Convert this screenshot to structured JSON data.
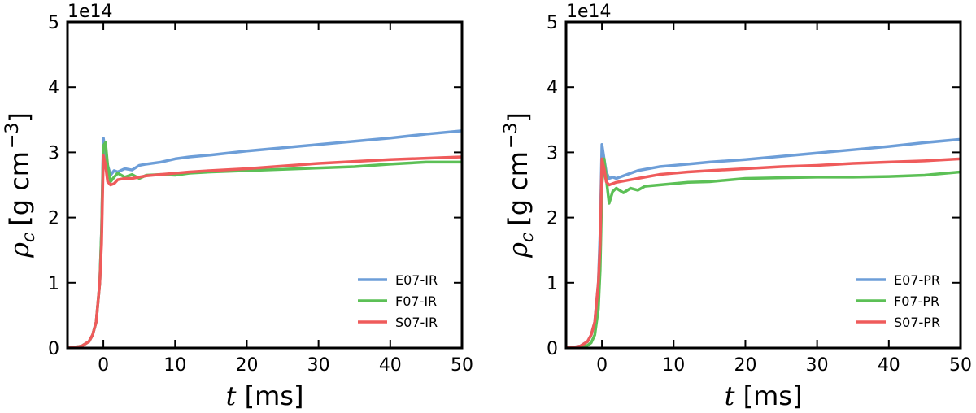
{
  "chart_data": [
    {
      "type": "line",
      "offset_label": "1e14",
      "xlabel": {
        "symbol": "t",
        "unit": "[ms]"
      },
      "ylabel": {
        "symbol": "ρ",
        "sub": "c",
        "unit": "[g cm",
        "sup": "−3",
        "close": "]"
      },
      "xlim": [
        -5,
        50
      ],
      "xticks": [
        0,
        10,
        20,
        30,
        40,
        50
      ],
      "ylim": [
        0,
        5
      ],
      "yticks": [
        0,
        1,
        2,
        3,
        4,
        5
      ],
      "legend": "lower right",
      "x": [
        -5,
        -4,
        -3,
        -2,
        -1.5,
        -1,
        -0.5,
        -0.25,
        0,
        0.3,
        0.6,
        1,
        1.5,
        2,
        3,
        4,
        5,
        6,
        8,
        10,
        12,
        15,
        20,
        25,
        30,
        35,
        40,
        45,
        50
      ],
      "series": [
        {
          "name": "E07-IR",
          "color": "#6d9ed8",
          "values": [
            0,
            0.01,
            0.03,
            0.1,
            0.2,
            0.4,
            1.0,
            1.8,
            3.22,
            3.0,
            2.8,
            2.65,
            2.72,
            2.7,
            2.75,
            2.73,
            2.8,
            2.82,
            2.85,
            2.9,
            2.93,
            2.96,
            3.02,
            3.07,
            3.12,
            3.17,
            3.22,
            3.28,
            3.33
          ]
        },
        {
          "name": "F07-IR",
          "color": "#5cc056",
          "values": [
            0,
            0.01,
            0.03,
            0.1,
            0.2,
            0.4,
            1.0,
            1.8,
            3.1,
            3.15,
            2.8,
            2.55,
            2.62,
            2.68,
            2.62,
            2.66,
            2.6,
            2.65,
            2.66,
            2.65,
            2.68,
            2.7,
            2.72,
            2.74,
            2.76,
            2.78,
            2.82,
            2.85,
            2.85
          ]
        },
        {
          "name": "S07-IR",
          "color": "#ef5b5b",
          "values": [
            0,
            0.01,
            0.03,
            0.1,
            0.2,
            0.4,
            1.0,
            1.6,
            2.95,
            2.8,
            2.55,
            2.5,
            2.52,
            2.58,
            2.6,
            2.6,
            2.62,
            2.64,
            2.66,
            2.68,
            2.7,
            2.72,
            2.75,
            2.79,
            2.83,
            2.86,
            2.89,
            2.91,
            2.93
          ]
        }
      ]
    },
    {
      "type": "line",
      "offset_label": "1e14",
      "xlabel": {
        "symbol": "t",
        "unit": "[ms]"
      },
      "ylabel": {
        "symbol": "ρ",
        "sub": "c",
        "unit": "[g cm",
        "sup": "−3",
        "close": "]"
      },
      "xlim": [
        -5,
        50
      ],
      "xticks": [
        0,
        10,
        20,
        30,
        40,
        50
      ],
      "ylim": [
        0,
        5
      ],
      "yticks": [
        0,
        1,
        2,
        3,
        4,
        5
      ],
      "legend": "lower right",
      "x": [
        -5,
        -4,
        -3,
        -2,
        -1.5,
        -1,
        -0.5,
        -0.25,
        0,
        0.3,
        0.6,
        1,
        1.5,
        2,
        3,
        4,
        5,
        6,
        8,
        10,
        12,
        15,
        20,
        25,
        30,
        35,
        40,
        45,
        50
      ],
      "series": [
        {
          "name": "E07-PR",
          "color": "#6d9ed8",
          "values": [
            0,
            0.01,
            0.03,
            0.1,
            0.2,
            0.4,
            1.0,
            1.8,
            3.12,
            2.9,
            2.7,
            2.6,
            2.62,
            2.6,
            2.64,
            2.68,
            2.72,
            2.74,
            2.78,
            2.8,
            2.82,
            2.85,
            2.89,
            2.94,
            2.99,
            3.04,
            3.09,
            3.15,
            3.2
          ]
        },
        {
          "name": "F07-PR",
          "color": "#5cc056",
          "values": [
            0,
            0.005,
            0.01,
            0.04,
            0.08,
            0.2,
            0.6,
            1.2,
            2.5,
            2.9,
            2.6,
            2.22,
            2.4,
            2.45,
            2.38,
            2.45,
            2.42,
            2.48,
            2.5,
            2.52,
            2.54,
            2.55,
            2.6,
            2.61,
            2.62,
            2.62,
            2.63,
            2.65,
            2.7
          ]
        },
        {
          "name": "S07-PR",
          "color": "#ef5b5b",
          "values": [
            0,
            0.01,
            0.03,
            0.1,
            0.2,
            0.4,
            1.0,
            1.6,
            2.9,
            2.75,
            2.55,
            2.5,
            2.52,
            2.54,
            2.56,
            2.58,
            2.6,
            2.62,
            2.66,
            2.68,
            2.7,
            2.72,
            2.75,
            2.78,
            2.8,
            2.83,
            2.85,
            2.87,
            2.9
          ]
        }
      ]
    }
  ]
}
